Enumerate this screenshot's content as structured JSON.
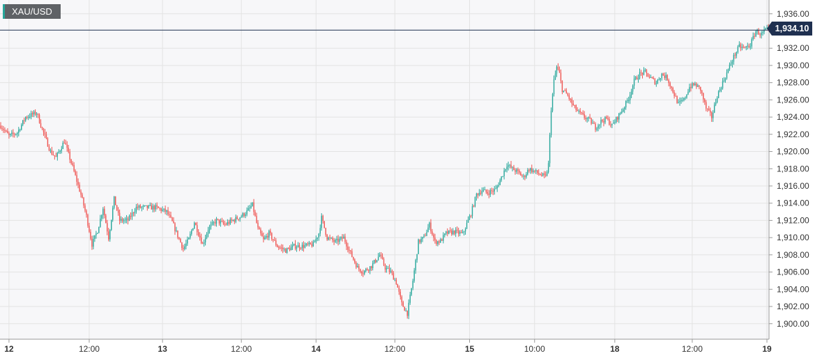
{
  "symbol": "XAU/USD",
  "last_price_label": "1,934.10",
  "colors": {
    "up": "#26a69a",
    "down": "#ef5350",
    "grid": "#e3e3e3",
    "plot_bg": "#f7f7f9",
    "price_line": "#1f3050"
  },
  "chart_data": {
    "type": "candlestick",
    "title": "",
    "xlabel": "",
    "ylabel": "",
    "ylim": [
      1898.2,
      1937.6
    ],
    "last_price": 1934.1,
    "grid": true,
    "y_axis_side": "right",
    "y_ticks": [
      1900,
      1902,
      1904,
      1906,
      1908,
      1910,
      1912,
      1914,
      1916,
      1918,
      1920,
      1922,
      1924,
      1926,
      1928,
      1930,
      1932,
      1936
    ],
    "y_tick_labels": [
      "1,900.00",
      "1,902.00",
      "1,904.00",
      "1,906.00",
      "1,908.00",
      "1,910.00",
      "1,912.00",
      "1,914.00",
      "1,916.00",
      "1,918.00",
      "1,920.00",
      "1,922.00",
      "1,924.00",
      "1,926.00",
      "1,928.00",
      "1,930.00",
      "1,932.00",
      "1,936.00"
    ],
    "x_ticks": [
      {
        "label": "12",
        "bold": true,
        "slot": 6
      },
      {
        "label": "12:00",
        "bold": false,
        "slot": 64
      },
      {
        "label": "13",
        "bold": true,
        "slot": 117
      },
      {
        "label": "12:00",
        "bold": false,
        "slot": 174
      },
      {
        "label": "14",
        "bold": true,
        "slot": 228
      },
      {
        "label": "12:00",
        "bold": false,
        "slot": 285
      },
      {
        "label": "15",
        "bold": true,
        "slot": 339
      },
      {
        "label": "10:00",
        "bold": false,
        "slot": 386
      },
      {
        "label": "18",
        "bold": true,
        "slot": 444
      },
      {
        "label": "12:00",
        "bold": false,
        "slot": 500
      },
      {
        "label": "19",
        "bold": true,
        "slot": 554
      }
    ],
    "slot_count": 556,
    "path": [
      [
        0,
        1923.0
      ],
      [
        6,
        1921.8
      ],
      [
        12,
        1922.2
      ],
      [
        18,
        1924.0
      ],
      [
        26,
        1924.5
      ],
      [
        30,
        1922.6
      ],
      [
        36,
        1920.0
      ],
      [
        40,
        1919.3
      ],
      [
        46,
        1921.2
      ],
      [
        52,
        1918.2
      ],
      [
        58,
        1915.0
      ],
      [
        62,
        1912.5
      ],
      [
        66,
        1909.2
      ],
      [
        70,
        1910.8
      ],
      [
        74,
        1913.5
      ],
      [
        78,
        1910.0
      ],
      [
        82,
        1914.5
      ],
      [
        86,
        1912.0
      ],
      [
        92,
        1912.0
      ],
      [
        98,
        1913.5
      ],
      [
        106,
        1913.5
      ],
      [
        112,
        1913.5
      ],
      [
        120,
        1913.0
      ],
      [
        124,
        1911.8
      ],
      [
        128,
        1910.2
      ],
      [
        132,
        1908.7
      ],
      [
        136,
        1909.8
      ],
      [
        140,
        1911.8
      ],
      [
        146,
        1909.2
      ],
      [
        150,
        1911.0
      ],
      [
        156,
        1912.0
      ],
      [
        162,
        1911.5
      ],
      [
        168,
        1912.0
      ],
      [
        174,
        1912.5
      ],
      [
        178,
        1913.0
      ],
      [
        182,
        1913.8
      ],
      [
        186,
        1911.0
      ],
      [
        190,
        1909.7
      ],
      [
        194,
        1910.5
      ],
      [
        200,
        1909.0
      ],
      [
        206,
        1908.5
      ],
      [
        212,
        1909.0
      ],
      [
        218,
        1909.0
      ],
      [
        226,
        1909.2
      ],
      [
        230,
        1910.5
      ],
      [
        232,
        1912.3
      ],
      [
        236,
        1910.0
      ],
      [
        242,
        1909.5
      ],
      [
        248,
        1910.0
      ],
      [
        252,
        1908.5
      ],
      [
        258,
        1906.5
      ],
      [
        262,
        1906.0
      ],
      [
        268,
        1906.7
      ],
      [
        274,
        1908.0
      ],
      [
        278,
        1906.5
      ],
      [
        282,
        1906.0
      ],
      [
        286,
        1904.8
      ],
      [
        290,
        1902.3
      ],
      [
        294,
        1901.2
      ],
      [
        298,
        1905.0
      ],
      [
        302,
        1909.5
      ],
      [
        306,
        1910.0
      ],
      [
        310,
        1911.5
      ],
      [
        314,
        1909.5
      ],
      [
        318,
        1909.6
      ],
      [
        322,
        1910.5
      ],
      [
        328,
        1910.7
      ],
      [
        334,
        1910.4
      ],
      [
        340,
        1912.8
      ],
      [
        344,
        1915.0
      ],
      [
        348,
        1915.5
      ],
      [
        352,
        1915.2
      ],
      [
        358,
        1915.6
      ],
      [
        362,
        1917.0
      ],
      [
        366,
        1918.5
      ],
      [
        370,
        1918.0
      ],
      [
        374,
        1917.6
      ],
      [
        378,
        1917.0
      ],
      [
        382,
        1918.0
      ],
      [
        388,
        1917.5
      ],
      [
        394,
        1917.0
      ],
      [
        396,
        1918.5
      ],
      [
        398,
        1925.0
      ],
      [
        400,
        1928.2
      ],
      [
        402,
        1929.8
      ],
      [
        404,
        1929.0
      ],
      [
        406,
        1927.2
      ],
      [
        410,
        1926.5
      ],
      [
        414,
        1925.3
      ],
      [
        418,
        1924.5
      ],
      [
        422,
        1924.0
      ],
      [
        426,
        1923.6
      ],
      [
        430,
        1922.8
      ],
      [
        434,
        1923.5
      ],
      [
        438,
        1923.8
      ],
      [
        442,
        1923.0
      ],
      [
        446,
        1924.0
      ],
      [
        450,
        1925.0
      ],
      [
        454,
        1926.2
      ],
      [
        458,
        1928.2
      ],
      [
        462,
        1929.0
      ],
      [
        466,
        1929.2
      ],
      [
        470,
        1928.5
      ],
      [
        474,
        1928.0
      ],
      [
        478,
        1929.0
      ],
      [
        482,
        1928.5
      ],
      [
        486,
        1927.0
      ],
      [
        490,
        1925.5
      ],
      [
        494,
        1926.0
      ],
      [
        498,
        1927.5
      ],
      [
        502,
        1927.8
      ],
      [
        506,
        1927.2
      ],
      [
        510,
        1925.0
      ],
      [
        514,
        1924.0
      ],
      [
        518,
        1926.5
      ],
      [
        522,
        1928.0
      ],
      [
        526,
        1929.5
      ],
      [
        530,
        1931.0
      ],
      [
        534,
        1932.2
      ],
      [
        538,
        1932.0
      ],
      [
        542,
        1932.4
      ],
      [
        546,
        1934.0
      ],
      [
        550,
        1933.6
      ],
      [
        553,
        1934.1
      ],
      [
        555,
        1934.1
      ]
    ]
  }
}
